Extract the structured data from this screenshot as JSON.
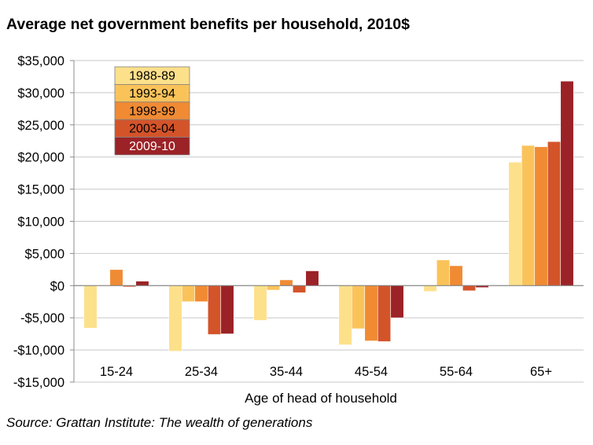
{
  "title": "Average net government benefits per household, 2010$",
  "source": "Source: Grattan Institute: The wealth of generations",
  "chart_data": {
    "type": "bar",
    "title": "Average net government benefits per household, 2010$",
    "xlabel": "Age of head of household",
    "ylabel": "",
    "ylim": [
      -15000,
      35000
    ],
    "y_ticks": [
      35000,
      30000,
      25000,
      20000,
      15000,
      10000,
      5000,
      0,
      -5000,
      -10000,
      -15000
    ],
    "y_tick_labels": [
      "$35,000",
      "$30,000",
      "$25,000",
      "$20,000",
      "$15,000",
      "$10,000",
      "$5,000",
      "$0",
      "-$5,000",
      "-$10,000",
      "-$15,000"
    ],
    "grid": true,
    "legend_position": "top-left",
    "categories": [
      "15-24",
      "25-34",
      "35-44",
      "45-54",
      "55-64",
      "65+"
    ],
    "series": [
      {
        "name": "1988-89",
        "color": "#fde08a",
        "values": [
          -6600,
          -10200,
          -5400,
          -9200,
          -900,
          19200
        ]
      },
      {
        "name": "1993-94",
        "color": "#fac35a",
        "values": [
          100,
          -2500,
          -700,
          -6700,
          4000,
          21800
        ]
      },
      {
        "name": "1998-99",
        "color": "#f08b34",
        "values": [
          2500,
          -2500,
          900,
          -8600,
          3100,
          21600
        ]
      },
      {
        "name": "2003-04",
        "color": "#d4542a",
        "values": [
          -200,
          -7600,
          -1100,
          -8700,
          -800,
          22400
        ]
      },
      {
        "name": "2009-10",
        "color": "#9b2226",
        "values": [
          700,
          -7500,
          2300,
          -5000,
          -300,
          31800
        ]
      }
    ]
  }
}
